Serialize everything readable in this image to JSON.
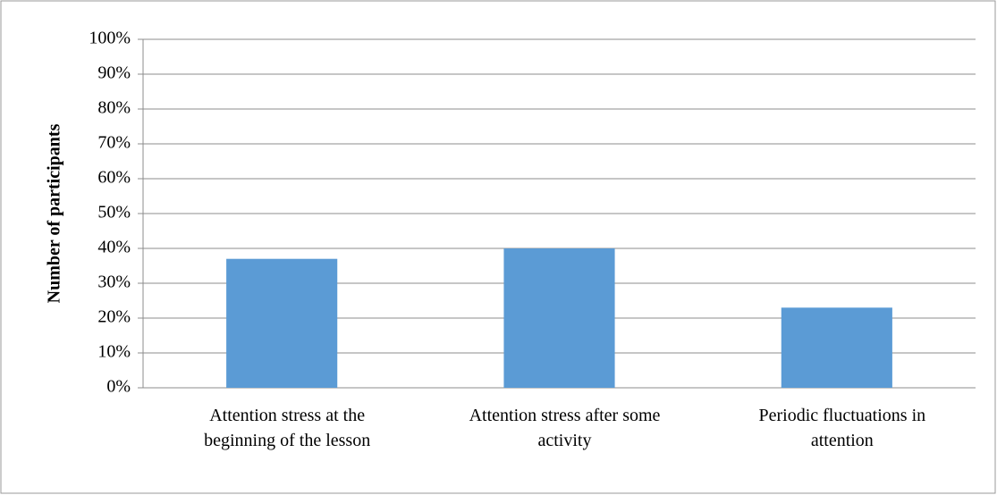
{
  "chart_data": {
    "type": "bar",
    "y_label": "Number of participants",
    "categories": [
      "Attention stress at the beginning of the lesson",
      "Attention stress after some activity",
      "Periodic fluctuations in attention"
    ],
    "values": [
      37,
      40,
      23
    ],
    "color": "#5b9bd5",
    "ylim": [
      0,
      100
    ],
    "yticks": [
      {
        "value": 0,
        "label": "0%"
      },
      {
        "value": 10,
        "label": "10%"
      },
      {
        "value": 20,
        "label": "20%"
      },
      {
        "value": 30,
        "label": "30%"
      },
      {
        "value": 40,
        "label": "40%"
      },
      {
        "value": 50,
        "label": "50%"
      },
      {
        "value": 60,
        "label": "60%"
      },
      {
        "value": 70,
        "label": "70%"
      },
      {
        "value": 80,
        "label": "80%"
      },
      {
        "value": 90,
        "label": "90%"
      },
      {
        "value": 100,
        "label": "100%"
      }
    ],
    "grid": true
  }
}
